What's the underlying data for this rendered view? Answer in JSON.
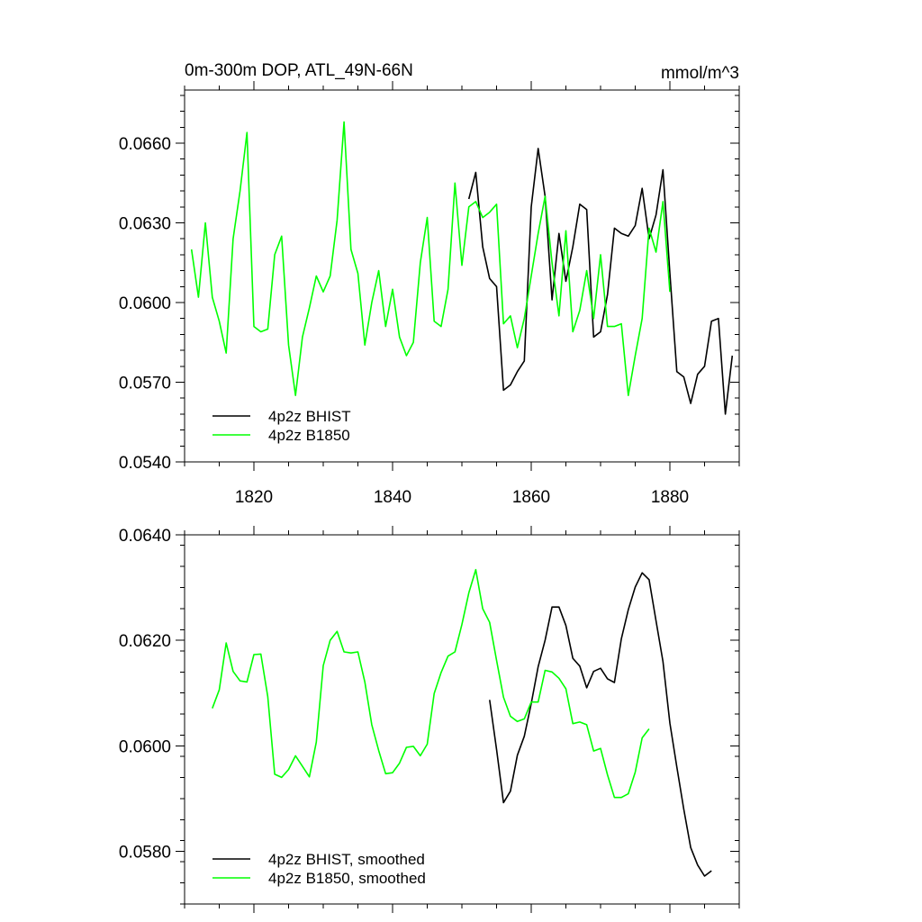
{
  "chart_data": [
    {
      "type": "line",
      "title": "0m-300m DOP, ATL_49N-66N",
      "units": "mmol/m^3",
      "xlim": [
        1810,
        1890
      ],
      "ylim": [
        0.054,
        0.068
      ],
      "xticks": [
        1820,
        1840,
        1860,
        1880
      ],
      "xtick_labels": [
        "1820",
        "1840",
        "1860",
        "1880"
      ],
      "yticks": [
        0.054,
        0.057,
        0.06,
        0.063,
        0.066
      ],
      "ytick_labels": [
        "0.0540",
        "0.0570",
        "0.0600",
        "0.0630",
        "0.0660"
      ],
      "legend": {
        "placement": "bottom-left",
        "entries": [
          "4p2z BHIST",
          "4p2z B1850"
        ]
      },
      "series": [
        {
          "name": "4p2z BHIST",
          "color": "#000000",
          "x": [
            1851,
            1852,
            1853,
            1854,
            1855,
            1856,
            1857,
            1858,
            1859,
            1860,
            1861,
            1862,
            1863,
            1864,
            1865,
            1866,
            1867,
            1868,
            1869,
            1870,
            1871,
            1872,
            1873,
            1874,
            1875,
            1876,
            1877,
            1878,
            1879,
            1880,
            1881,
            1882,
            1883,
            1884,
            1885,
            1886,
            1887,
            1888,
            1889
          ],
          "y": [
            0.0639,
            0.0649,
            0.0621,
            0.0609,
            0.0606,
            0.0567,
            0.0569,
            0.0574,
            0.0578,
            0.0636,
            0.0658,
            0.064,
            0.0601,
            0.0626,
            0.0608,
            0.0621,
            0.0637,
            0.0635,
            0.0587,
            0.0589,
            0.0603,
            0.0628,
            0.0626,
            0.0625,
            0.0629,
            0.0643,
            0.0624,
            0.0633,
            0.065,
            0.0611,
            0.0574,
            0.0572,
            0.0562,
            0.0573,
            0.0576,
            0.0593,
            0.0594,
            0.0558,
            0.058
          ]
        },
        {
          "name": "4p2z B1850",
          "color": "#00ff00",
          "x": [
            1811,
            1812,
            1813,
            1814,
            1815,
            1816,
            1817,
            1818,
            1819,
            1820,
            1821,
            1822,
            1823,
            1824,
            1825,
            1826,
            1827,
            1828,
            1829,
            1830,
            1831,
            1832,
            1833,
            1834,
            1835,
            1836,
            1837,
            1838,
            1839,
            1840,
            1841,
            1842,
            1843,
            1844,
            1845,
            1846,
            1847,
            1848,
            1849,
            1850,
            1851,
            1852,
            1853,
            1854,
            1855,
            1856,
            1857,
            1858,
            1859,
            1860,
            1861,
            1862,
            1863,
            1864,
            1865,
            1866,
            1867,
            1868,
            1869,
            1870,
            1871,
            1872,
            1873,
            1874,
            1875,
            1876,
            1877,
            1878,
            1879,
            1880
          ],
          "y": [
            0.062,
            0.0602,
            0.063,
            0.0602,
            0.0593,
            0.0581,
            0.0624,
            0.0642,
            0.0664,
            0.0591,
            0.0589,
            0.059,
            0.0618,
            0.0625,
            0.0584,
            0.0565,
            0.0587,
            0.0598,
            0.061,
            0.0604,
            0.061,
            0.0631,
            0.0668,
            0.062,
            0.0611,
            0.0584,
            0.06,
            0.0612,
            0.0591,
            0.0605,
            0.0587,
            0.058,
            0.0585,
            0.0615,
            0.0632,
            0.0593,
            0.0591,
            0.0605,
            0.0645,
            0.0614,
            0.0636,
            0.0638,
            0.0632,
            0.0634,
            0.0637,
            0.0592,
            0.0595,
            0.0583,
            0.0594,
            0.061,
            0.0626,
            0.064,
            0.0615,
            0.0595,
            0.0627,
            0.0589,
            0.0597,
            0.0612,
            0.0594,
            0.0618,
            0.0591,
            0.0591,
            0.0592,
            0.0565,
            0.058,
            0.0594,
            0.0628,
            0.0619,
            0.0638,
            0.0604
          ]
        }
      ]
    },
    {
      "type": "line",
      "title": "",
      "xlim": [
        1810,
        1890
      ],
      "ylim": [
        0.057,
        0.064
      ],
      "xticks": [
        1820,
        1840,
        1860,
        1880
      ],
      "yticks": [
        0.058,
        0.06,
        0.062,
        0.064
      ],
      "ytick_labels": [
        "0.0580",
        "0.0600",
        "0.0620",
        "0.0640"
      ],
      "legend": {
        "placement": "bottom-left",
        "entries": [
          "4p2z BHIST, smoothed",
          "4p2z B1850, smoothed"
        ]
      },
      "series": [
        {
          "name": "4p2z BHIST, smoothed",
          "color": "#000000",
          "x": [
            1854,
            1855,
            1856,
            1857,
            1858,
            1859,
            1860,
            1861,
            1862,
            1863,
            1864,
            1865,
            1866,
            1867,
            1868,
            1869,
            1870,
            1871,
            1872,
            1873,
            1874,
            1875,
            1876,
            1877,
            1878,
            1879,
            1880,
            1881,
            1882,
            1883,
            1884,
            1885,
            1886
          ],
          "y": [
            0.06087,
            0.05993,
            0.05892,
            0.05914,
            0.05982,
            0.06018,
            0.0608,
            0.0615,
            0.062,
            0.06263,
            0.06263,
            0.06228,
            0.06166,
            0.06151,
            0.0611,
            0.06141,
            0.06147,
            0.06127,
            0.0612,
            0.06203,
            0.06258,
            0.06301,
            0.06328,
            0.06315,
            0.06237,
            0.0616,
            0.06043,
            0.0596,
            0.0588,
            0.05807,
            0.05774,
            0.05753,
            0.05763
          ]
        },
        {
          "name": "4p2z B1850, smoothed",
          "color": "#00ff00",
          "x": [
            1814,
            1815,
            1816,
            1817,
            1818,
            1819,
            1820,
            1821,
            1822,
            1823,
            1824,
            1825,
            1826,
            1827,
            1828,
            1829,
            1830,
            1831,
            1832,
            1833,
            1834,
            1835,
            1836,
            1837,
            1838,
            1839,
            1840,
            1841,
            1842,
            1843,
            1844,
            1845,
            1846,
            1847,
            1848,
            1849,
            1850,
            1851,
            1852,
            1853,
            1854,
            1855,
            1856,
            1857,
            1858,
            1859,
            1860,
            1861,
            1862,
            1863,
            1864,
            1865,
            1866,
            1867,
            1868,
            1869,
            1870,
            1871,
            1872,
            1873,
            1874,
            1875,
            1876,
            1877
          ],
          "y": [
            0.06071,
            0.06106,
            0.06195,
            0.06141,
            0.06123,
            0.06121,
            0.06173,
            0.06174,
            0.06093,
            0.05946,
            0.0594,
            0.05955,
            0.05981,
            0.05961,
            0.05941,
            0.06007,
            0.06152,
            0.062,
            0.06217,
            0.06178,
            0.06176,
            0.06178,
            0.06121,
            0.0604,
            0.05991,
            0.05947,
            0.05949,
            0.05967,
            0.05997,
            0.05999,
            0.05981,
            0.06003,
            0.06099,
            0.06139,
            0.0617,
            0.06178,
            0.0623,
            0.0629,
            0.06334,
            0.0626,
            0.06234,
            0.06162,
            0.06092,
            0.06056,
            0.06046,
            0.06051,
            0.06083,
            0.06083,
            0.06143,
            0.0614,
            0.06128,
            0.06108,
            0.06042,
            0.06045,
            0.0604,
            0.0599,
            0.05995,
            0.05945,
            0.05902,
            0.05902,
            0.05909,
            0.0595,
            0.06015,
            0.06032
          ]
        }
      ]
    }
  ]
}
